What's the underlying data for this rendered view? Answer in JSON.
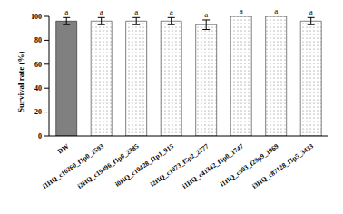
{
  "chart_data": {
    "type": "bar",
    "ylabel": "Survival rate (%)",
    "categories": [
      "DW",
      "i1HQ_c10260_f1p0_1593",
      "i2HQ_c19496_f1p0_2385",
      "i0HQ_c10428_f1p1_915",
      "i2HQ_c1073_f5p2_2277",
      "i1HQ_c41342_f1p0_1747",
      "i1HQ_c503_f29p9_1969",
      "i3HQ_c87128_f1p5_3433"
    ],
    "values": [
      96,
      96,
      96,
      96,
      93,
      100,
      100,
      96
    ],
    "errors": [
      3,
      3,
      3,
      3,
      4,
      0,
      0,
      3
    ],
    "annotations": [
      "a",
      "a",
      "a",
      "a",
      "a",
      "a",
      "a",
      "a"
    ],
    "colors": [
      "#808080",
      "#ffffff",
      "#ffffff",
      "#ffffff",
      "#ffffff",
      "#ffffff",
      "#ffffff",
      "#ffffff"
    ],
    "ylim": [
      0,
      100
    ],
    "yticks": [
      0,
      20,
      40,
      60,
      80,
      100
    ]
  }
}
